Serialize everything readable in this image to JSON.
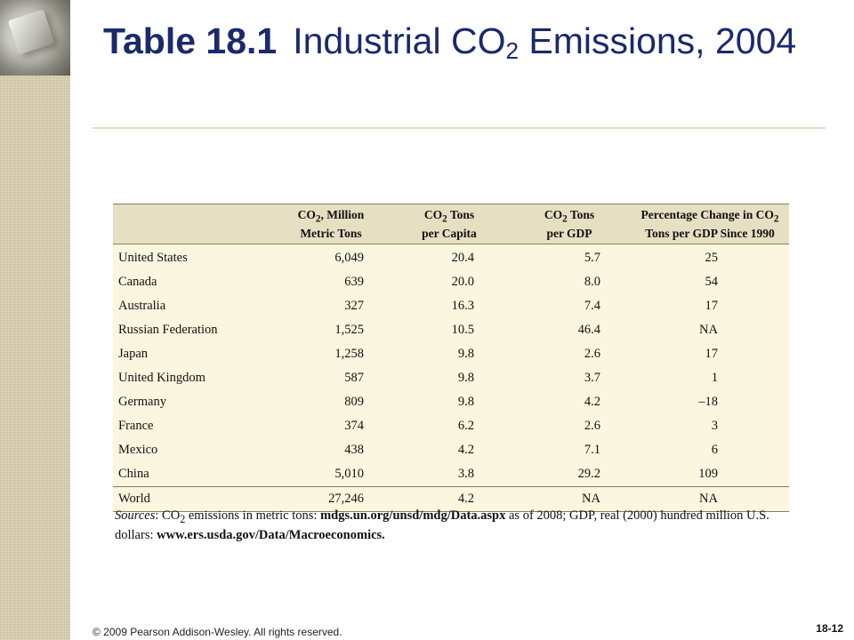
{
  "slide": {
    "title_number": "Table 18.1",
    "title_pre": "Industrial CO",
    "title_sub": "2",
    "title_post": " Emissions, 2004"
  },
  "table": {
    "headers": [
      {
        "l1a": "",
        "sub": "",
        "l1b": "",
        "l2": ""
      },
      {
        "l1a": "CO",
        "sub": "2",
        "l1b": ", Million",
        "l2": "Metric Tons"
      },
      {
        "l1a": "CO",
        "sub": "2",
        "l1b": " Tons",
        "l2": "per Capita"
      },
      {
        "l1a": "CO",
        "sub": "2",
        "l1b": " Tons",
        "l2": "per GDP"
      },
      {
        "l1a": "Percentage Change in CO",
        "sub": "2",
        "l1b": "",
        "l2": "Tons per GDP Since 1990"
      }
    ],
    "rows": [
      [
        "United States",
        "6,049",
        "20.4",
        "5.7",
        "25"
      ],
      [
        "Canada",
        "639",
        "20.0",
        "8.0",
        "54"
      ],
      [
        "Australia",
        "327",
        "16.3",
        "7.4",
        "17"
      ],
      [
        "Russian Federation",
        "1,525",
        "10.5",
        "46.4",
        "NA"
      ],
      [
        "Japan",
        "1,258",
        "9.8",
        "2.6",
        "17"
      ],
      [
        "United Kingdom",
        "587",
        "9.8",
        "3.7",
        "1"
      ],
      [
        "Germany",
        "809",
        "9.8",
        "4.2",
        "–18"
      ],
      [
        "France",
        "374",
        "6.2",
        "2.6",
        "3"
      ],
      [
        "Mexico",
        "438",
        "4.2",
        "7.1",
        "6"
      ],
      [
        "China",
        "5,010",
        "3.8",
        "29.2",
        "109"
      ]
    ],
    "total_row": [
      "World",
      "27,246",
      "4.2",
      "NA",
      "NA"
    ]
  },
  "sources": {
    "label": "Sources",
    "colon": ": ",
    "t1": "CO",
    "t1_sub": "2",
    "t2": " emissions in metric tons: ",
    "link1": "mdgs.un.org/unsd/mdg/Data.aspx",
    "t3": " as of 2008; GDP, real (2000) hundred million U.S. dollars: ",
    "link2": "www.ers.usda.gov/Data/Macroeconomics."
  },
  "footer": {
    "copyright": "© 2009 Pearson Addison-Wesley. All rights reserved.",
    "page_number": "18-12"
  }
}
